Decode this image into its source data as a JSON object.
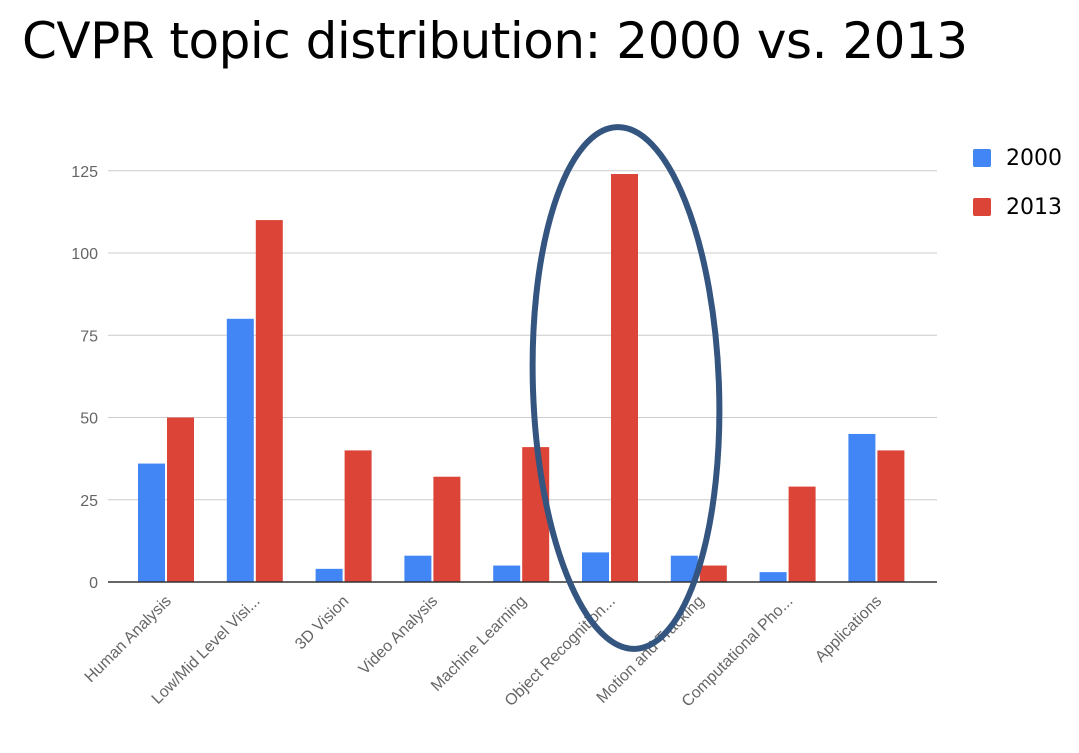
{
  "slide": {
    "title": "CVPR topic distribution: 2000 vs. 2013"
  },
  "colors": {
    "series_2000": "#4285f4",
    "series_2013": "#db4437",
    "highlight_ellipse": "#34557f",
    "gridline": "#cccccc",
    "baseline": "#333333",
    "axis_text": "#666666"
  },
  "chart_data": {
    "type": "bar",
    "categories": [
      "Human Analysis",
      "Low/Mid Level Visi...",
      "3D Vision",
      "Video Analysis",
      "Machine Learning",
      "Object Recognition...",
      "Motion and Tracking",
      "Computational Pho...",
      "Applications"
    ],
    "series": [
      {
        "name": "2000",
        "values": [
          36,
          80,
          4,
          8,
          5,
          9,
          8,
          3,
          45
        ]
      },
      {
        "name": "2013",
        "values": [
          50,
          110,
          40,
          32,
          41,
          124,
          5,
          29,
          40
        ]
      }
    ],
    "yticks": [
      0,
      25,
      50,
      75,
      100,
      125
    ],
    "ylim": [
      0,
      125
    ],
    "grid": true,
    "legend": "right",
    "annotation": "ellipse around Object Recognition..."
  }
}
